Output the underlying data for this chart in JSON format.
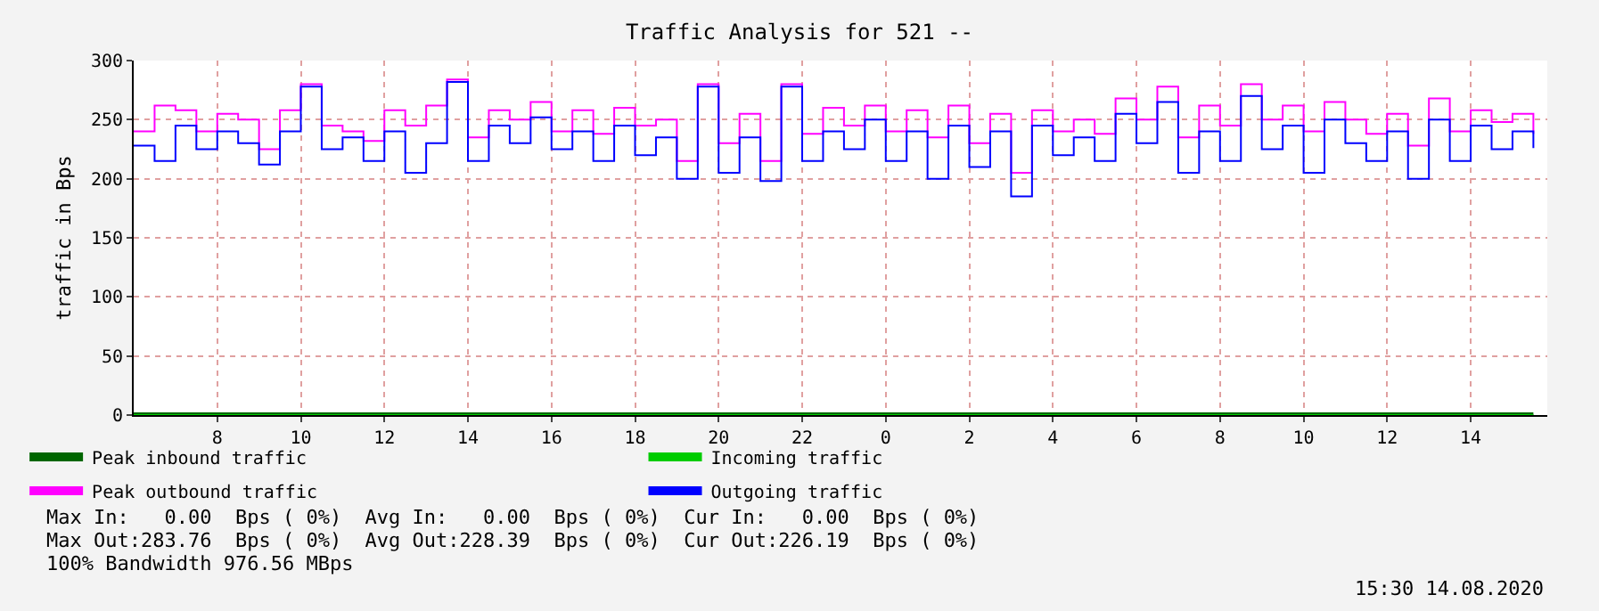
{
  "chart_data": {
    "type": "step",
    "title": "Traffic Analysis for 521 --",
    "ylabel": "traffic in Bps",
    "x": [
      "--08-13T06:00",
      "--08-13T06:30",
      "--08-13T07:00",
      "--08-13T07:30",
      "--08-13T08:00",
      "--08-13T08:30",
      "--08-13T09:00",
      "--08-13T09:30",
      "--08-13T10:00",
      "--08-13T10:30",
      "--08-13T11:00",
      "--08-13T11:30",
      "--08-13T12:00",
      "--08-13T12:30",
      "--08-13T13:00",
      "--08-13T13:30",
      "--08-13T14:00",
      "--08-13T14:30",
      "--08-13T15:00",
      "--08-13T15:30",
      "--08-13T16:00",
      "--08-13T16:30",
      "--08-13T17:00",
      "--08-13T17:30",
      "--08-13T18:00",
      "--08-13T18:30",
      "--08-13T19:00",
      "--08-13T19:30",
      "--08-13T20:00",
      "--08-13T20:30",
      "--08-13T21:00",
      "--08-13T21:30",
      "--08-13T22:00",
      "--08-13T22:30",
      "--08-13T23:00",
      "--08-13T23:30",
      "--08-14T00:00",
      "--08-14T00:30",
      "--08-14T01:00",
      "--08-14T01:30",
      "--08-14T02:00",
      "--08-14T02:30",
      "--08-14T03:00",
      "--08-14T03:30",
      "--08-14T04:00",
      "--08-14T04:30",
      "--08-14T05:00",
      "--08-14T05:30",
      "--08-14T06:00",
      "--08-14T06:30",
      "--08-14T07:00",
      "--08-14T07:30",
      "--08-14T08:00",
      "--08-14T08:30",
      "--08-14T09:00",
      "--08-14T09:30",
      "--08-14T10:00",
      "--08-14T10:30",
      "--08-14T11:00",
      "--08-14T11:30",
      "--08-14T12:00",
      "--08-14T12:30",
      "--08-14T13:00",
      "--08-14T13:30",
      "--08-14T14:00",
      "--08-14T14:30",
      "--08-14T15:00",
      "--08-14T15:30"
    ],
    "series": [
      {
        "name": "Peak inbound traffic",
        "color": "#006600",
        "values": [
          0,
          0,
          0,
          0,
          0,
          0,
          0,
          0,
          0,
          0,
          0,
          0,
          0,
          0,
          0,
          0,
          0,
          0,
          0,
          0,
          0,
          0,
          0,
          0,
          0,
          0,
          0,
          0,
          0,
          0,
          0,
          0,
          0,
          0,
          0,
          0,
          0,
          0,
          0,
          0,
          0,
          0,
          0,
          0,
          0,
          0,
          0,
          0,
          0,
          0,
          0,
          0,
          0,
          0,
          0,
          0,
          0,
          0,
          0,
          0,
          0,
          0,
          0,
          0,
          0,
          0,
          0,
          0
        ]
      },
      {
        "name": "Incoming traffic",
        "color": "#00cc00",
        "values": [
          0,
          0,
          0,
          0,
          0,
          0,
          0,
          0,
          0,
          0,
          0,
          0,
          0,
          0,
          0,
          0,
          0,
          0,
          0,
          0,
          0,
          0,
          0,
          0,
          0,
          0,
          0,
          0,
          0,
          0,
          0,
          0,
          0,
          0,
          0,
          0,
          0,
          0,
          0,
          0,
          0,
          0,
          0,
          0,
          0,
          0,
          0,
          0,
          0,
          0,
          0,
          0,
          0,
          0,
          0,
          0,
          0,
          0,
          0,
          0,
          0,
          0,
          0,
          0,
          0,
          0,
          0,
          0
        ]
      },
      {
        "name": "Peak outbound traffic",
        "color": "#ff00ff",
        "values": [
          240,
          262,
          258,
          240,
          255,
          250,
          225,
          258,
          280,
          245,
          240,
          232,
          258,
          245,
          262,
          284,
          235,
          258,
          250,
          265,
          240,
          258,
          238,
          260,
          245,
          250,
          215,
          280,
          230,
          255,
          215,
          280,
          238,
          260,
          245,
          262,
          240,
          258,
          235,
          262,
          230,
          255,
          205,
          258,
          240,
          250,
          238,
          268,
          250,
          278,
          235,
          262,
          245,
          280,
          250,
          262,
          240,
          265,
          250,
          238,
          255,
          228,
          268,
          240,
          258,
          248,
          255,
          238
        ]
      },
      {
        "name": "Outgoing traffic",
        "color": "#0000ff",
        "values": [
          228,
          215,
          245,
          225,
          240,
          230,
          212,
          240,
          278,
          225,
          235,
          215,
          240,
          205,
          230,
          282,
          215,
          245,
          230,
          252,
          225,
          240,
          215,
          245,
          220,
          235,
          200,
          278,
          205,
          235,
          198,
          278,
          215,
          240,
          225,
          250,
          215,
          240,
          200,
          245,
          210,
          240,
          185,
          245,
          220,
          235,
          215,
          255,
          230,
          265,
          205,
          240,
          215,
          270,
          225,
          245,
          205,
          250,
          230,
          215,
          240,
          200,
          250,
          215,
          245,
          225,
          240,
          226
        ]
      }
    ],
    "ylim": [
      0,
      300
    ],
    "yticks": [
      0,
      50,
      100,
      150,
      200,
      250,
      300
    ],
    "xlim": [
      "--08-13T06:00",
      "--08-14T15:50"
    ],
    "xticks": [
      {
        "value": "--08-13T08:00",
        "label": "8"
      },
      {
        "value": "--08-13T10:00",
        "label": "10"
      },
      {
        "value": "--08-13T12:00",
        "label": "12"
      },
      {
        "value": "--08-13T14:00",
        "label": "14"
      },
      {
        "value": "--08-13T16:00",
        "label": "16"
      },
      {
        "value": "--08-13T18:00",
        "label": "18"
      },
      {
        "value": "--08-13T20:00",
        "label": "20"
      },
      {
        "value": "--08-13T22:00",
        "label": "22"
      },
      {
        "value": "--08-14T00:00",
        "label": "0"
      },
      {
        "value": "--08-14T02:00",
        "label": "2"
      },
      {
        "value": "--08-14T04:00",
        "label": "4"
      },
      {
        "value": "--08-14T06:00",
        "label": "6"
      },
      {
        "value": "--08-14T08:00",
        "label": "8"
      },
      {
        "value": "--08-14T10:00",
        "label": "10"
      },
      {
        "value": "--08-14T12:00",
        "label": "12"
      },
      {
        "value": "--08-14T14:00",
        "label": "14"
      }
    ],
    "grid": true,
    "legend": "bottom left",
    "annotations": [
      "Max In:   0.00  Bps ( 0%)  Avg In:   0.00  Bps ( 0%)  Cur In:   0.00  Bps ( 0%)",
      "Max Out:283.76  Bps ( 0%)  Avg Out:228.39  Bps ( 0%)  Cur Out:226.19  Bps ( 0%)",
      "100% Bandwidth 976.56 MBps",
      "15:30 14.08.2020"
    ]
  }
}
